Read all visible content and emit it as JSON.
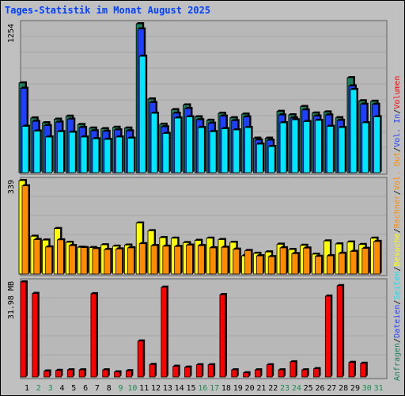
{
  "title": "Tages-Statistik im Monat August 2025",
  "colors": {
    "anfragen": "#1e7f5c",
    "dateien": "#1f3fff",
    "seiten": "#00e6ff",
    "besuche": "#ffff00",
    "rechner": "#ff8c00",
    "volumen": "#ff0000",
    "weekday_label": "#000000",
    "weekend_label": "#1e8c50"
  },
  "legend_right": {
    "top": [
      "Anfragen",
      "/",
      "Dateien",
      "/",
      "Seiten",
      "/",
      "Besuche",
      "/",
      "Rechner",
      "/",
      "Vol. Out",
      "/",
      "Vol. In",
      "/",
      "Volumen"
    ]
  },
  "chart_data": [
    {
      "type": "bar",
      "name": "hits",
      "ymax_label": "1254",
      "ylim": [
        0,
        1254
      ],
      "categories": [
        "1",
        "2",
        "3",
        "4",
        "5",
        "6",
        "7",
        "8",
        "9",
        "10",
        "11",
        "12",
        "13",
        "14",
        "15",
        "16",
        "17",
        "18",
        "19",
        "20",
        "21",
        "22",
        "23",
        "24",
        "25",
        "26",
        "27",
        "28",
        "29",
        "30",
        "31"
      ],
      "weekend": [
        false,
        true,
        true,
        false,
        false,
        false,
        false,
        false,
        true,
        true,
        false,
        false,
        false,
        false,
        false,
        true,
        true,
        false,
        false,
        false,
        false,
        false,
        true,
        true,
        false,
        false,
        false,
        false,
        false,
        true,
        true
      ],
      "series": [
        {
          "name": "Anfragen",
          "values": [
            755,
            460,
            420,
            450,
            475,
            405,
            375,
            370,
            382,
            375,
            1254,
            620,
            408,
            530,
            570,
            470,
            441,
            500,
            462,
            493,
            290,
            290,
            516,
            487,
            557,
            502,
            511,
            462,
            800,
            605,
            601
          ]
        },
        {
          "name": "Dateien",
          "values": [
            710,
            432,
            396,
            425,
            450,
            380,
            352,
            348,
            360,
            352,
            1210,
            590,
            386,
            500,
            540,
            445,
            416,
            476,
            438,
            469,
            275,
            273,
            485,
            460,
            528,
            476,
            485,
            440,
            730,
            576,
            575
          ]
        },
        {
          "name": "Seiten",
          "values": [
            390,
            350,
            300,
            345,
            340,
            300,
            285,
            280,
            300,
            290,
            980,
            500,
            330,
            460,
            470,
            380,
            345,
            370,
            360,
            380,
            240,
            220,
            420,
            445,
            430,
            440,
            390,
            380,
            700,
            420,
            470
          ]
        }
      ]
    },
    {
      "type": "bar",
      "name": "visits",
      "ymax_label": "339",
      "ylim": [
        0,
        339
      ],
      "series": [
        {
          "name": "Besuche",
          "values": [
            339,
            137,
            123,
            165,
            115,
            97,
            96,
            106,
            101,
            105,
            185,
            157,
            132,
            130,
            114,
            122,
            130,
            125,
            115,
            66,
            75,
            80,
            108,
            89,
            104,
            72,
            120,
            109,
            116,
            107,
            130
          ]
        },
        {
          "name": "Rechner",
          "values": [
            320,
            125,
            98,
            124,
            103,
            96,
            92,
            89,
            91,
            95,
            110,
            103,
            101,
            100,
            105,
            103,
            95,
            97,
            90,
            85,
            66,
            63,
            95,
            74,
            94,
            64,
            66,
            75,
            82,
            93,
            118
          ]
        }
      ]
    },
    {
      "type": "bar",
      "name": "volume",
      "ymax_label": "31.98 MB",
      "ylim": [
        0,
        31.98
      ],
      "series": [
        {
          "name": "Volumen",
          "values": [
            31.98,
            28.1,
            2.0,
            2.2,
            2.4,
            2.4,
            28.0,
            2.4,
            1.7,
            2.1,
            12.1,
            4.2,
            30.2,
            3.6,
            3.3,
            4.1,
            4.1,
            27.7,
            2.4,
            1.4,
            2.4,
            4.1,
            2.4,
            5.1,
            2.4,
            2.8,
            27.2,
            30.7,
            4.9,
            4.6,
            0
          ]
        }
      ]
    }
  ]
}
